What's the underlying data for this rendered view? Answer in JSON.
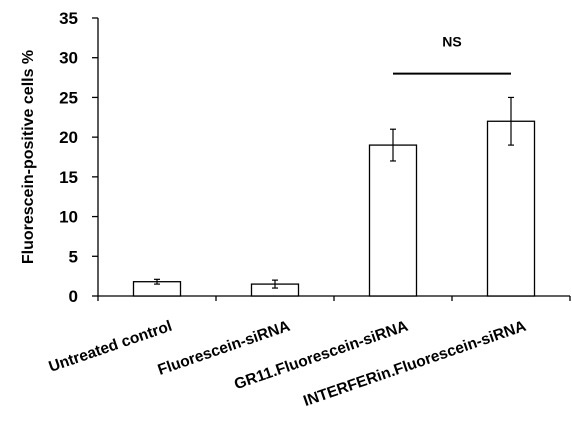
{
  "chart_data": {
    "type": "bar",
    "title": "",
    "xlabel": "",
    "ylabel": "Fluorescein-positive cells %",
    "ylim": [
      0,
      35
    ],
    "yticks": [
      0,
      5,
      10,
      15,
      20,
      25,
      30,
      35
    ],
    "grid": false,
    "categories": [
      "Untreated control",
      "Fluorescein-siRNA",
      "GR11.Fluorescein-siRNA",
      "INTERFERin.Fluorescein-siRNA"
    ],
    "values": [
      1.8,
      1.5,
      19,
      22
    ],
    "error_low": [
      1.5,
      1.0,
      17,
      19
    ],
    "error_high": [
      2.1,
      2.0,
      21,
      25
    ],
    "bar_fill": "#ffffff",
    "bar_stroke": "#000000",
    "annotations": [
      {
        "text": "NS",
        "between": [
          2,
          3
        ],
        "y": 28
      }
    ]
  }
}
